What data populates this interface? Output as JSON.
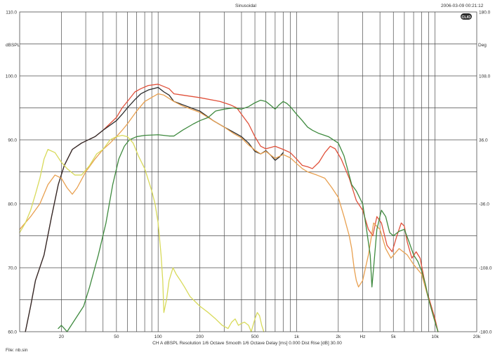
{
  "chart_data": {
    "type": "line",
    "title": "Sinusoidal",
    "timestamp": "2006-03-09 00:21:12",
    "logo": "CLIO",
    "ylabel_left": "dBSPL",
    "ylabel_right": "Deg",
    "footer_info": "CH A  dBSPL  Resolution 1/6 Octave  Smooth 1/6 Octave  Delay [ms] 0.000  Dist Rise [dB] 30.00",
    "file_label": "File: nb.sin",
    "x_scale": "log",
    "xlim": [
      10,
      20000
    ],
    "ylim": [
      60,
      110
    ],
    "y2lim": [
      -180,
      180
    ],
    "x_tick_labels": [
      {
        "v": 20,
        "t": "20"
      },
      {
        "v": 50,
        "t": "50"
      },
      {
        "v": 100,
        "t": "100"
      },
      {
        "v": 200,
        "t": "200"
      },
      {
        "v": 500,
        "t": "500"
      },
      {
        "v": 1000,
        "t": "1k"
      },
      {
        "v": 2000,
        "t": "2k"
      },
      {
        "v": 3000,
        "t": "Hz"
      },
      {
        "v": 5000,
        "t": "5k"
      },
      {
        "v": 10000,
        "t": "10k"
      },
      {
        "v": 20000,
        "t": "20k"
      }
    ],
    "y_tick_labels": [
      "60.0",
      "70.0",
      "80.0",
      "90.0",
      "100.0",
      "110.0"
    ],
    "y2_tick_labels": [
      "-180.0",
      "-108.0",
      "-36.0",
      "36.0",
      "108.0",
      "180.0"
    ],
    "grid": true,
    "legend": "none",
    "colors": {
      "grid": "#4d4d4d",
      "red": "#e0503a",
      "black": "#2b2b2b",
      "orange": "#e8a050",
      "green": "#3f8a3f",
      "yellow": "#d8da5a"
    },
    "series": [
      {
        "color": "red",
        "points": [
          [
            11,
            60
          ],
          [
            12,
            64
          ],
          [
            13,
            68
          ],
          [
            15,
            72
          ],
          [
            17,
            78
          ],
          [
            19,
            83
          ],
          [
            21,
            86
          ],
          [
            24,
            88.5
          ],
          [
            28,
            89.5
          ],
          [
            35,
            90.5
          ],
          [
            40,
            91.5
          ],
          [
            50,
            93.5
          ],
          [
            55,
            95
          ],
          [
            60,
            96
          ],
          [
            68,
            97.5
          ],
          [
            75,
            98
          ],
          [
            85,
            98.5
          ],
          [
            100,
            98.7
          ],
          [
            120,
            98
          ],
          [
            130,
            97.2
          ],
          [
            150,
            97
          ],
          [
            200,
            96.6
          ],
          [
            280,
            96
          ],
          [
            330,
            95.5
          ],
          [
            370,
            95
          ],
          [
            400,
            94
          ],
          [
            450,
            92.5
          ],
          [
            500,
            90.5
          ],
          [
            550,
            89
          ],
          [
            600,
            88.6
          ],
          [
            700,
            89
          ],
          [
            800,
            88.5
          ],
          [
            900,
            88
          ],
          [
            1000,
            87
          ],
          [
            1100,
            86
          ],
          [
            1200,
            85.8
          ],
          [
            1300,
            85.5
          ],
          [
            1450,
            86.5
          ],
          [
            1600,
            88
          ],
          [
            1750,
            89
          ],
          [
            1900,
            88.6
          ],
          [
            2100,
            87
          ],
          [
            2400,
            84
          ],
          [
            2700,
            80.5
          ],
          [
            3000,
            79
          ],
          [
            3300,
            76
          ],
          [
            3550,
            75
          ],
          [
            3800,
            78
          ],
          [
            4100,
            77
          ],
          [
            4500,
            73.5
          ],
          [
            4900,
            72.5
          ],
          [
            5300,
            75
          ],
          [
            5700,
            77
          ],
          [
            6000,
            76.5
          ],
          [
            6300,
            74
          ],
          [
            6800,
            71.5
          ],
          [
            7300,
            72.5
          ],
          [
            7800,
            71.5
          ],
          [
            8300,
            68.5
          ],
          [
            8800,
            66
          ],
          [
            9100,
            65
          ],
          [
            10000,
            62
          ],
          [
            10500,
            60
          ]
        ]
      },
      {
        "color": "black",
        "points": [
          [
            11,
            60
          ],
          [
            12,
            64
          ],
          [
            13,
            68
          ],
          [
            15,
            72
          ],
          [
            17,
            78
          ],
          [
            19,
            83
          ],
          [
            21,
            86
          ],
          [
            24,
            88.5
          ],
          [
            28,
            89.5
          ],
          [
            35,
            90.5
          ],
          [
            40,
            91.5
          ],
          [
            50,
            93
          ],
          [
            55,
            94
          ],
          [
            60,
            95
          ],
          [
            68,
            96.3
          ],
          [
            75,
            97.2
          ],
          [
            85,
            97.8
          ],
          [
            100,
            98.2
          ],
          [
            110,
            97.5
          ],
          [
            120,
            97
          ],
          [
            130,
            96
          ],
          [
            150,
            95.5
          ],
          [
            200,
            94.5
          ],
          [
            250,
            93
          ],
          [
            300,
            92
          ],
          [
            350,
            91.2
          ],
          [
            400,
            90.5
          ],
          [
            450,
            89.5
          ],
          [
            500,
            88.2
          ],
          [
            550,
            87.8
          ],
          [
            600,
            88.3
          ],
          [
            650,
            87.6
          ],
          [
            700,
            86.8
          ],
          [
            750,
            87.3
          ],
          [
            800,
            88
          ]
        ]
      },
      {
        "color": "orange",
        "points": [
          [
            10,
            76
          ],
          [
            12,
            78
          ],
          [
            14,
            80
          ],
          [
            16,
            83
          ],
          [
            18,
            84.5
          ],
          [
            20,
            84
          ],
          [
            22,
            82.5
          ],
          [
            24,
            81.5
          ],
          [
            26,
            82.5
          ],
          [
            30,
            85
          ],
          [
            35,
            87
          ],
          [
            40,
            88.5
          ],
          [
            45,
            89.5
          ],
          [
            50,
            90.5
          ],
          [
            55,
            91.5
          ],
          [
            60,
            92.5
          ],
          [
            70,
            94.5
          ],
          [
            80,
            96
          ],
          [
            100,
            97.2
          ],
          [
            110,
            97
          ],
          [
            130,
            96
          ],
          [
            150,
            95.3
          ],
          [
            200,
            94.3
          ],
          [
            250,
            93
          ],
          [
            300,
            92
          ],
          [
            350,
            91
          ],
          [
            400,
            90.3
          ],
          [
            450,
            89.2
          ],
          [
            500,
            88.4
          ],
          [
            550,
            87.8
          ],
          [
            600,
            88.2
          ],
          [
            700,
            87.1
          ],
          [
            800,
            87.7
          ],
          [
            900,
            87.2
          ],
          [
            1000,
            86.3
          ],
          [
            1100,
            85.5
          ],
          [
            1200,
            85
          ],
          [
            1400,
            84.5
          ],
          [
            1600,
            84
          ],
          [
            1800,
            82.5
          ],
          [
            2000,
            81
          ],
          [
            2200,
            78
          ],
          [
            2400,
            75
          ],
          [
            2500,
            73
          ],
          [
            2600,
            70
          ],
          [
            2700,
            68
          ],
          [
            2800,
            67
          ],
          [
            3000,
            68
          ],
          [
            3300,
            72
          ],
          [
            3600,
            77
          ],
          [
            4000,
            76
          ],
          [
            4400,
            73
          ],
          [
            4800,
            71.5
          ],
          [
            5500,
            73
          ],
          [
            6300,
            72
          ],
          [
            7000,
            70.5
          ],
          [
            8000,
            69
          ],
          [
            9000,
            65
          ],
          [
            10000,
            61.5
          ],
          [
            10500,
            60
          ]
        ]
      },
      {
        "color": "green",
        "points": [
          [
            19,
            60.5
          ],
          [
            20,
            61
          ],
          [
            21,
            60.5
          ],
          [
            22,
            60
          ],
          [
            29,
            64
          ],
          [
            32,
            67
          ],
          [
            37,
            72
          ],
          [
            42,
            77
          ],
          [
            47,
            83
          ],
          [
            52,
            87
          ],
          [
            57,
            89
          ],
          [
            62,
            90
          ],
          [
            70,
            90.5
          ],
          [
            80,
            90.7
          ],
          [
            100,
            90.8
          ],
          [
            120,
            90.6
          ],
          [
            130,
            90.6
          ],
          [
            150,
            91.5
          ],
          [
            180,
            92.5
          ],
          [
            200,
            93
          ],
          [
            230,
            93.5
          ],
          [
            260,
            94.5
          ],
          [
            300,
            94.8
          ],
          [
            350,
            95
          ],
          [
            400,
            94.8
          ],
          [
            450,
            95.2
          ],
          [
            500,
            95.8
          ],
          [
            550,
            96.2
          ],
          [
            600,
            96
          ],
          [
            650,
            95.4
          ],
          [
            700,
            94.8
          ],
          [
            750,
            95.5
          ],
          [
            800,
            96
          ],
          [
            850,
            95.7
          ],
          [
            900,
            95.2
          ],
          [
            1000,
            94
          ],
          [
            1100,
            93
          ],
          [
            1200,
            92
          ],
          [
            1300,
            91.5
          ],
          [
            1450,
            91
          ],
          [
            1700,
            90.5
          ],
          [
            2000,
            89.5
          ],
          [
            2200,
            87.5
          ],
          [
            2500,
            83
          ],
          [
            2700,
            82
          ],
          [
            3000,
            80
          ],
          [
            3200,
            76
          ],
          [
            3400,
            72
          ],
          [
            3500,
            67
          ],
          [
            3600,
            70
          ],
          [
            3800,
            76
          ],
          [
            4100,
            79
          ],
          [
            4400,
            78
          ],
          [
            4700,
            75.5
          ],
          [
            5000,
            75
          ],
          [
            5500,
            75.7
          ],
          [
            6000,
            76
          ],
          [
            6500,
            74
          ],
          [
            7000,
            72
          ],
          [
            7500,
            71
          ],
          [
            8000,
            69.5
          ],
          [
            8500,
            67.5
          ],
          [
            9000,
            65
          ],
          [
            10000,
            61.5
          ],
          [
            10500,
            60
          ]
        ]
      },
      {
        "color": "yellow",
        "points": [
          [
            10,
            75.5
          ],
          [
            11,
            77
          ],
          [
            12,
            79
          ],
          [
            13,
            81.5
          ],
          [
            14,
            84
          ],
          [
            15,
            87
          ],
          [
            16,
            88.5
          ],
          [
            18,
            88
          ],
          [
            20,
            86.5
          ],
          [
            22,
            85.5
          ],
          [
            25,
            84.5
          ],
          [
            28,
            84.5
          ],
          [
            32,
            86
          ],
          [
            36,
            87.8
          ],
          [
            40,
            88.5
          ],
          [
            45,
            90
          ],
          [
            50,
            90.5
          ],
          [
            55,
            90.7
          ],
          [
            60,
            90.5
          ],
          [
            66,
            89.5
          ],
          [
            72,
            87.5
          ],
          [
            80,
            85.5
          ],
          [
            90,
            82
          ],
          [
            95,
            80
          ],
          [
            100,
            77
          ],
          [
            105,
            72
          ],
          [
            108,
            68
          ],
          [
            110,
            63
          ],
          [
            115,
            65
          ],
          [
            120,
            68
          ],
          [
            128,
            70
          ],
          [
            135,
            69
          ],
          [
            145,
            68
          ],
          [
            155,
            67
          ],
          [
            170,
            65.5
          ],
          [
            200,
            64
          ],
          [
            230,
            63
          ],
          [
            260,
            62
          ],
          [
            290,
            61
          ],
          [
            320,
            60.5
          ],
          [
            340,
            61.5
          ],
          [
            360,
            62
          ],
          [
            380,
            61
          ],
          [
            400,
            61.3
          ],
          [
            420,
            61.5
          ],
          [
            450,
            61
          ],
          [
            470,
            60
          ],
          [
            500,
            62
          ],
          [
            520,
            63
          ],
          [
            540,
            62.5
          ],
          [
            560,
            61
          ],
          [
            580,
            60
          ]
        ]
      }
    ]
  }
}
